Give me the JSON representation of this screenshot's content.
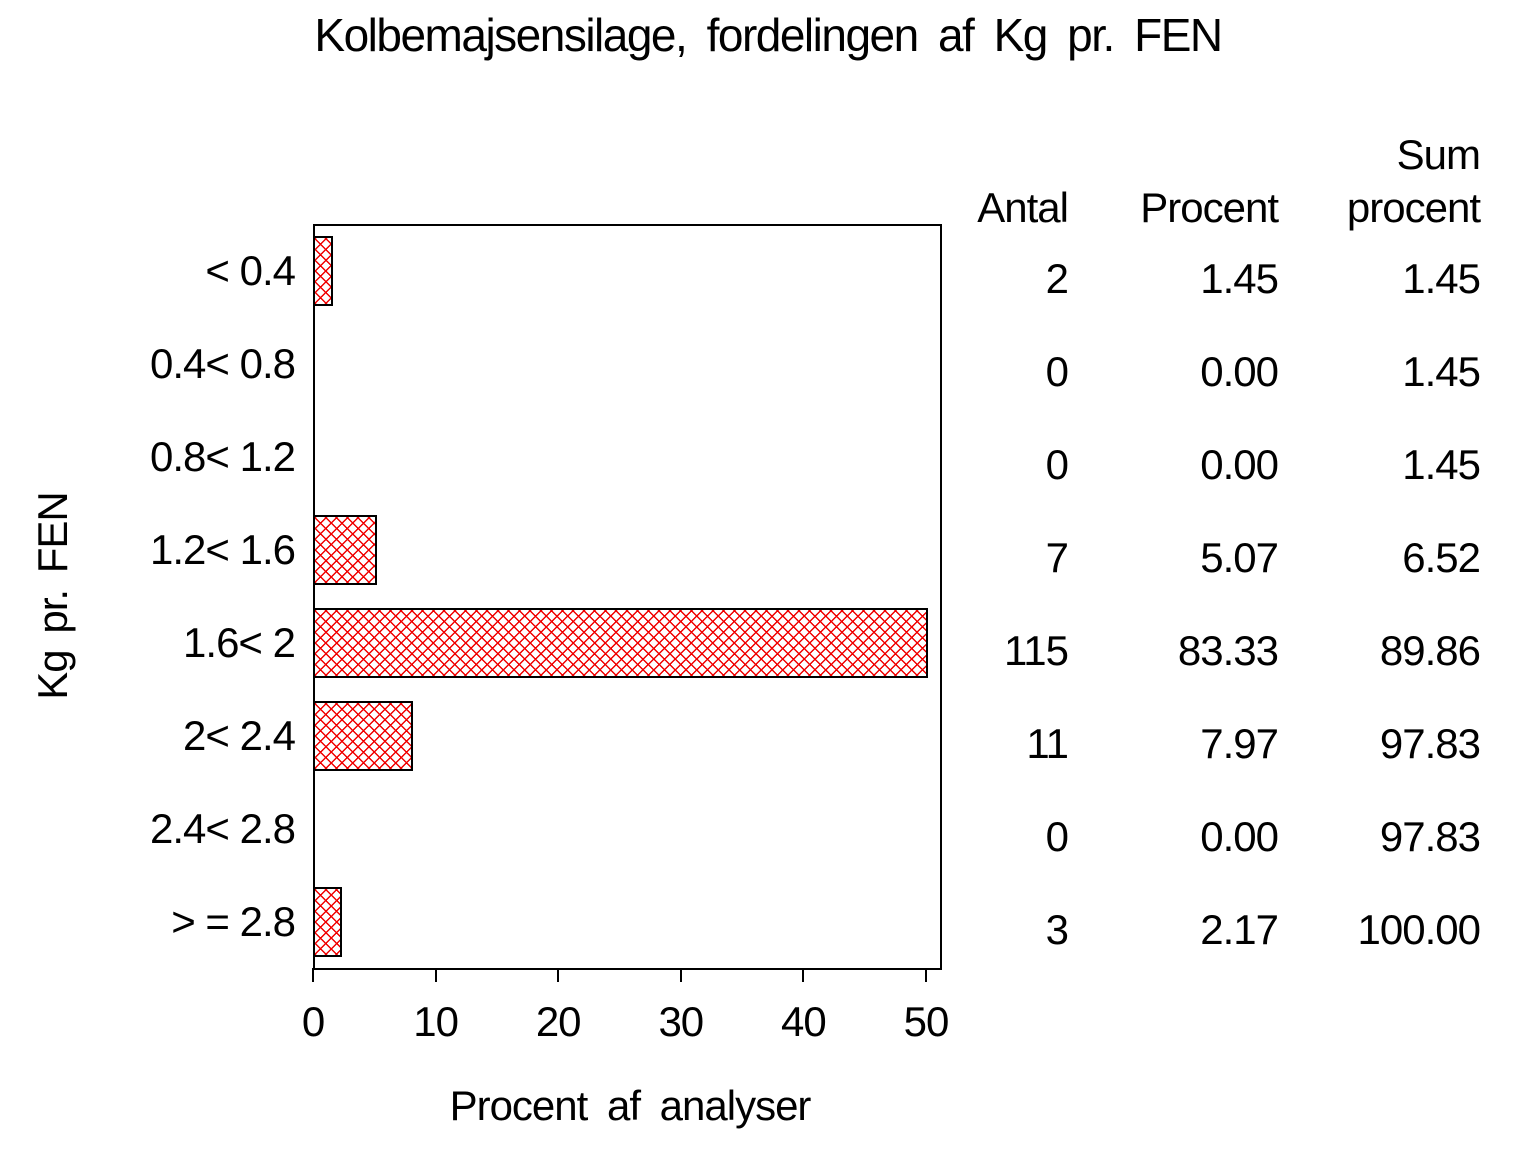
{
  "title": "Kolbemajsensilage, fordelingen af Kg pr. FEN",
  "chart_data": {
    "type": "bar",
    "orientation": "horizontal",
    "title": "Kolbemajsensilage, fordelingen af Kg pr. FEN",
    "xlabel": "Procent af analyser",
    "ylabel": "Kg pr. FEN",
    "xlim": [
      0,
      50
    ],
    "xtick_labels": [
      "0",
      "10",
      "20",
      "30",
      "40",
      "50"
    ],
    "grid": "off",
    "legend": "none",
    "categories": [
      "< 0.4",
      "0.4< 0.8",
      "0.8< 1.2",
      "1.2< 1.6",
      "1.6< 2",
      "2< 2.4",
      "2.4< 2.8",
      "> = 2.8"
    ],
    "series": [
      {
        "name": "Procent af analyser",
        "values": [
          1.45,
          0.0,
          0.0,
          5.07,
          83.33,
          7.97,
          0.0,
          2.17
        ]
      }
    ],
    "note": "bar for category 1.6< 2 (83.33%) is clipped at the axis maximum of 50",
    "colors": {
      "bar_hatch": "#f00000",
      "bar_border": "#000000",
      "axis": "#000000",
      "text": "#000000",
      "background": "#ffffff"
    }
  },
  "table": {
    "headers": [
      "Antal",
      "Procent",
      "Sum procent"
    ],
    "antal": [
      "2",
      "0",
      "0",
      "7",
      "115",
      "11",
      "0",
      "3"
    ],
    "procent": [
      "1.45",
      "0.00",
      "0.00",
      "5.07",
      "83.33",
      "7.97",
      "0.00",
      "2.17"
    ],
    "sum_procent": [
      "1.45",
      "1.45",
      "1.45",
      "6.52",
      "89.86",
      "97.83",
      "97.83",
      "100.00"
    ]
  }
}
